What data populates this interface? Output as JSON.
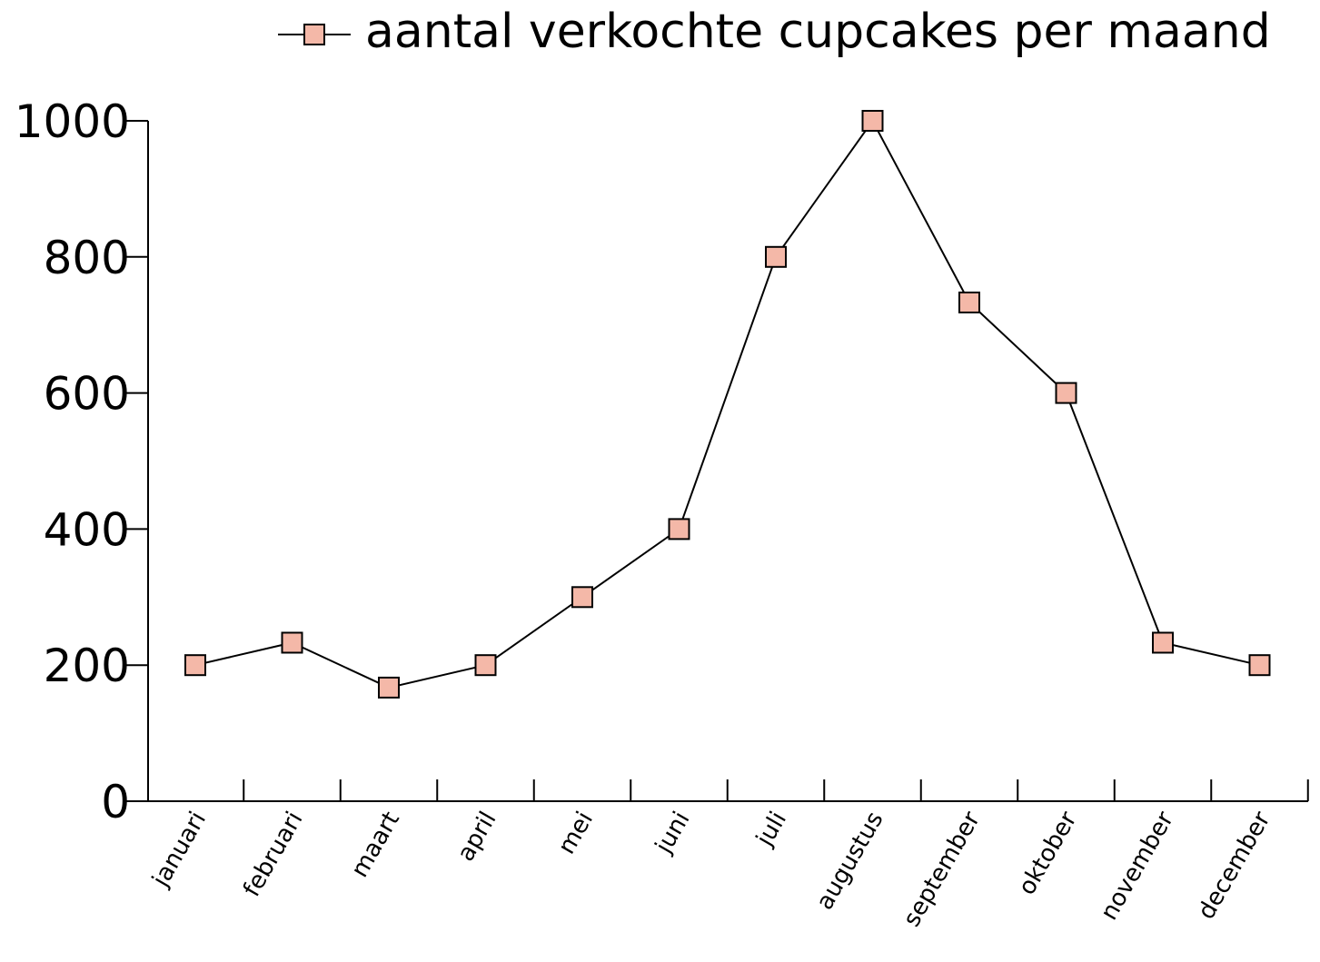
{
  "chart_data": {
    "type": "line",
    "categories": [
      "januari",
      "februari",
      "maart",
      "april",
      "mei",
      "juni",
      "juli",
      "augustus",
      "september",
      "oktober",
      "november",
      "december"
    ],
    "series": [
      {
        "name": "aantal verkochte cupcakes per maand",
        "values": [
          200,
          233,
          167,
          200,
          300,
          400,
          800,
          1000,
          733,
          600,
          233,
          200
        ],
        "marker": "square",
        "marker_color": "#f4b8a8",
        "line_color": "#000000"
      }
    ],
    "yticks": [
      "0",
      "200",
      "400",
      "600",
      "800",
      "1000"
    ],
    "ylim": [
      0,
      1000
    ],
    "grid": false,
    "legend_position": "top"
  }
}
